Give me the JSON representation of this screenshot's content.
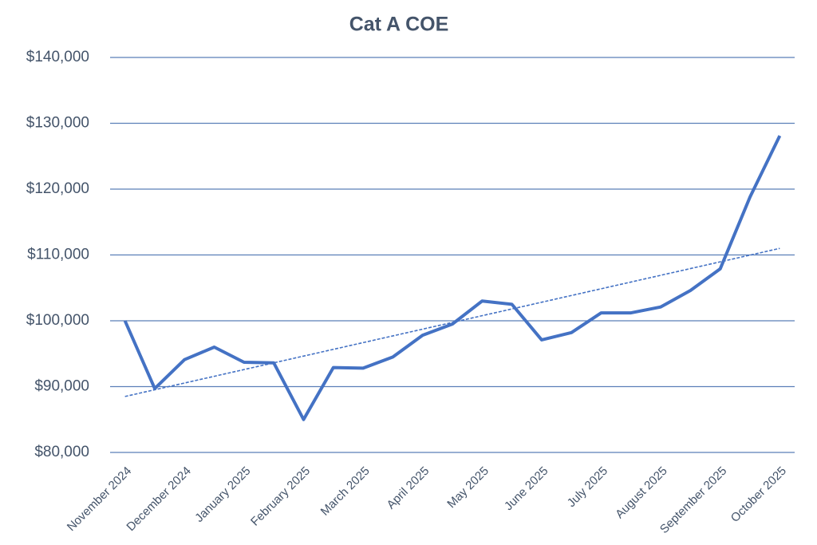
{
  "chart_data": {
    "type": "line",
    "title": "Cat A COE",
    "categories": [
      "November 2024",
      null,
      "December 2024",
      null,
      "January 2025",
      null,
      "February 2025",
      null,
      "March 2025",
      null,
      "April 2025",
      null,
      "May 2025",
      null,
      "June 2025",
      null,
      "July 2025",
      null,
      "August 2025",
      null,
      "September 2025",
      null,
      "October 2025"
    ],
    "series": [
      {
        "color": "#4472c4",
        "values": [
          100000,
          89700,
          94100,
          96000,
          93700,
          93600,
          85000,
          92900,
          92800,
          94500,
          97800,
          99500,
          103000,
          102500,
          97100,
          98200,
          101200,
          101200,
          102100,
          104600,
          107900,
          118800,
          128100
        ]
      }
    ],
    "trendline": {
      "values": [
        88500,
        111000
      ],
      "color": "#4472c4",
      "style": "dashed"
    },
    "ylim": [
      80000,
      140000
    ],
    "yticks": [
      {
        "value": 80000,
        "label": "$80,000"
      },
      {
        "value": 90000,
        "label": "$90,000"
      },
      {
        "value": 100000,
        "label": "$100,000"
      },
      {
        "value": 110000,
        "label": "$110,000"
      },
      {
        "value": 120000,
        "label": "$120,000"
      },
      {
        "value": 130000,
        "label": "$130,000"
      },
      {
        "value": 140000,
        "label": "$140,000"
      }
    ],
    "grid": true
  }
}
